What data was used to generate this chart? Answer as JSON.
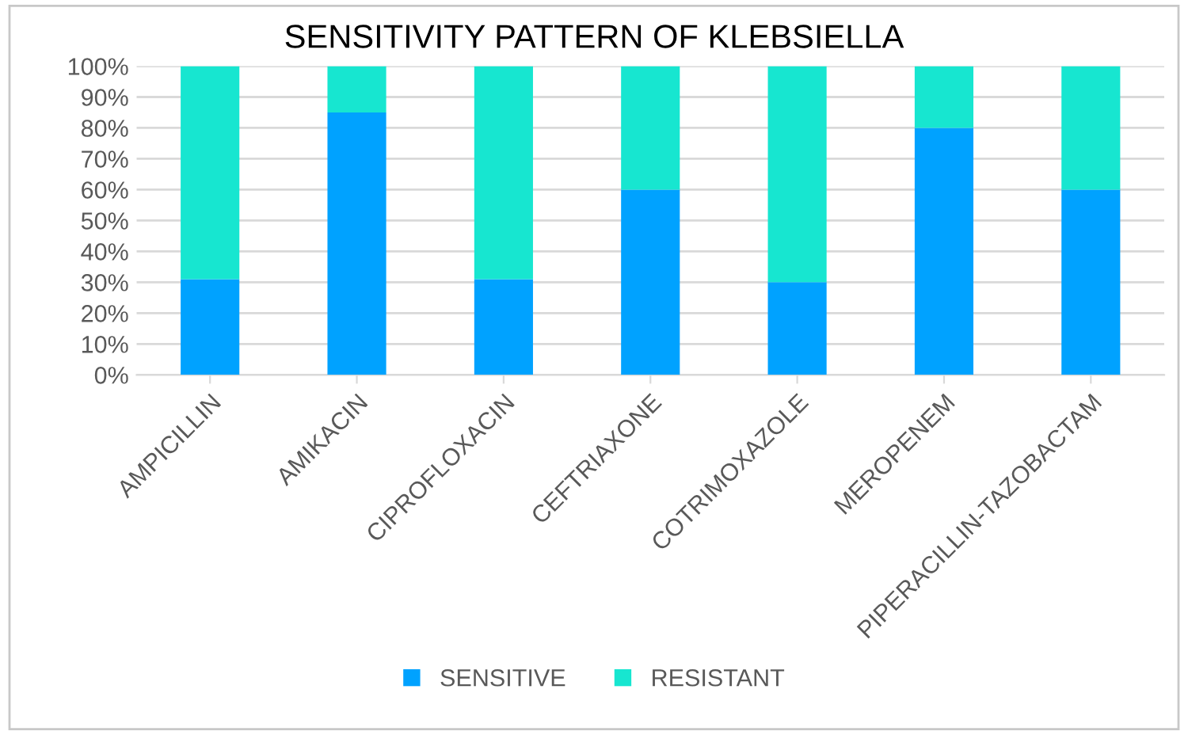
{
  "chart_data": {
    "type": "bar",
    "stacked": true,
    "title": "SENSITIVITY PATTERN OF KLEBSIELLA",
    "categories": [
      "AMPICILLIN",
      "AMIKACIN",
      "CIPROFLOXACIN",
      "CEFTRIAXONE",
      "COTRIMOXAZOLE",
      "MEROPENEM",
      "PIPERACILLIN-TAZOBACTAM"
    ],
    "series": [
      {
        "name": "SENSITIVE",
        "color": "#00a2ff",
        "values": [
          31,
          85,
          31,
          60,
          30,
          80,
          60
        ]
      },
      {
        "name": "RESISTANT",
        "color": "#17e6d0",
        "values": [
          69,
          15,
          69,
          40,
          70,
          20,
          40
        ]
      }
    ],
    "ylim": [
      0,
      100
    ],
    "yticks": [
      {
        "value": 0,
        "label": "0%"
      },
      {
        "value": 10,
        "label": "10%"
      },
      {
        "value": 20,
        "label": "20%"
      },
      {
        "value": 30,
        "label": "30%"
      },
      {
        "value": 40,
        "label": "40%"
      },
      {
        "value": 50,
        "label": "50%"
      },
      {
        "value": 60,
        "label": "60%"
      },
      {
        "value": 70,
        "label": "70%"
      },
      {
        "value": 80,
        "label": "80%"
      },
      {
        "value": 90,
        "label": "90%"
      },
      {
        "value": 100,
        "label": "100%"
      }
    ],
    "grid": "y",
    "legend": "bottom"
  }
}
